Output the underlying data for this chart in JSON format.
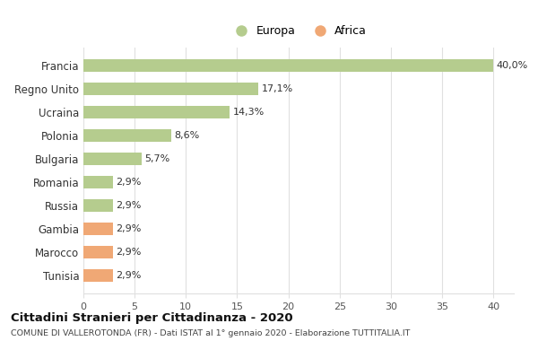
{
  "categories": [
    "Tunisia",
    "Marocco",
    "Gambia",
    "Russia",
    "Romania",
    "Bulgaria",
    "Polonia",
    "Ucraina",
    "Regno Unito",
    "Francia"
  ],
  "values": [
    2.9,
    2.9,
    2.9,
    2.9,
    2.9,
    5.7,
    8.6,
    14.3,
    17.1,
    40.0
  ],
  "labels": [
    "2,9%",
    "2,9%",
    "2,9%",
    "2,9%",
    "2,9%",
    "5,7%",
    "8,6%",
    "14,3%",
    "17,1%",
    "40,0%"
  ],
  "colors": [
    "#f0a875",
    "#f0a875",
    "#f0a875",
    "#b5cc8e",
    "#b5cc8e",
    "#b5cc8e",
    "#b5cc8e",
    "#b5cc8e",
    "#b5cc8e",
    "#b5cc8e"
  ],
  "legend_labels": [
    "Europa",
    "Africa"
  ],
  "legend_colors": [
    "#b5cc8e",
    "#f0a875"
  ],
  "title": "Cittadini Stranieri per Cittadinanza - 2020",
  "subtitle": "COMUNE DI VALLEROTONDA (FR) - Dati ISTAT al 1° gennaio 2020 - Elaborazione TUTTITALIA.IT",
  "xlim": [
    0,
    42
  ],
  "xticks": [
    0,
    5,
    10,
    15,
    20,
    25,
    30,
    35,
    40
  ],
  "background_color": "#ffffff",
  "grid_color": "#e0e0e0",
  "bar_height": 0.55,
  "label_fontsize": 8,
  "ytick_fontsize": 8.5,
  "xtick_fontsize": 8
}
